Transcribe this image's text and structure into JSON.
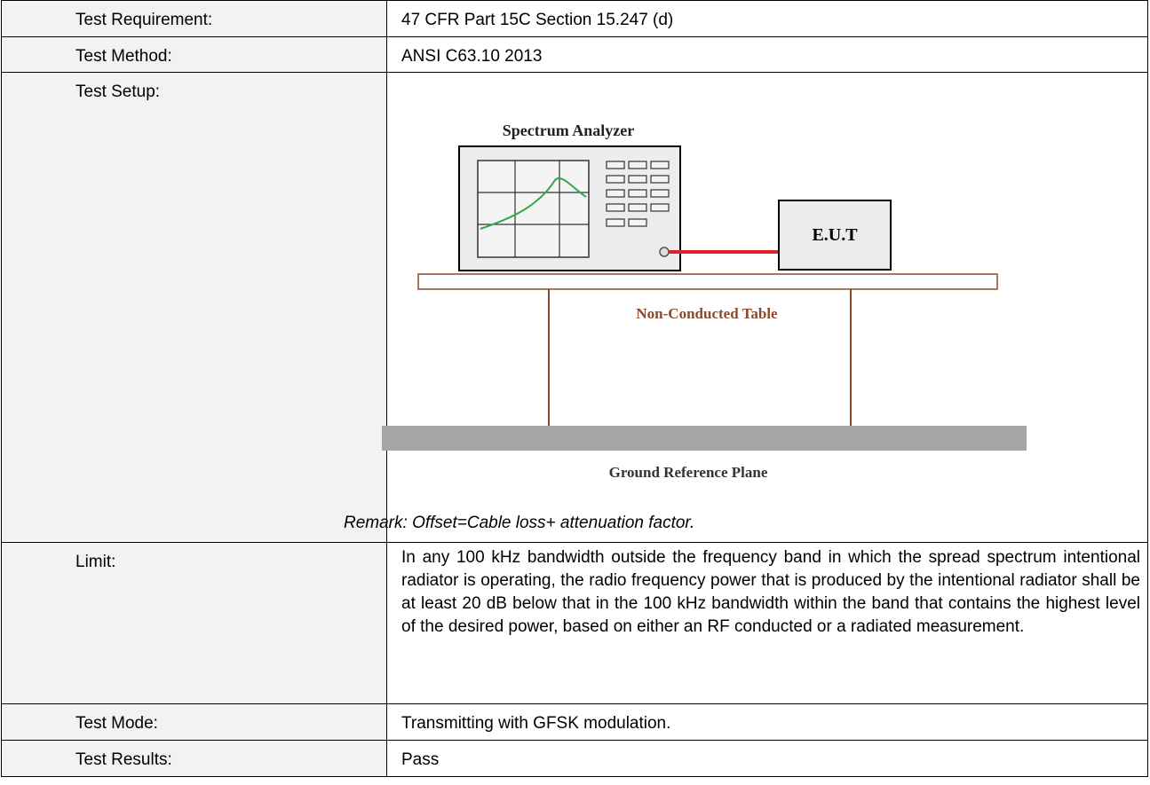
{
  "table": {
    "rows": [
      {
        "label": "Test Requirement:",
        "value": "47 CFR Part 15C Section 15.247 (d)"
      },
      {
        "label": "Test Method:",
        "value": "ANSI C63.10 2013"
      },
      {
        "label": "Test Setup:",
        "diagram": {
          "analyzer": "Spectrum Analyzer",
          "eut": "E.U.T",
          "table": "Non-Conducted Table",
          "ground": "Ground Reference Plane"
        },
        "remark": "Remark: Offset=Cable loss+ attenuation factor."
      },
      {
        "label": "Limit:",
        "value": "In any 100 kHz bandwidth outside the frequency band in which the spread spectrum intentional radiator is operating, the radio frequency power that is produced by the intentional radiator shall be at least 20 dB below that in the 100 kHz bandwidth within the band that contains the highest level of the desired power, based on either an RF conducted or a radiated measurement."
      },
      {
        "label": "Test Mode:",
        "value": "Transmitting with GFSK modulation."
      },
      {
        "label": "Test Results:",
        "value": "Pass"
      }
    ]
  }
}
